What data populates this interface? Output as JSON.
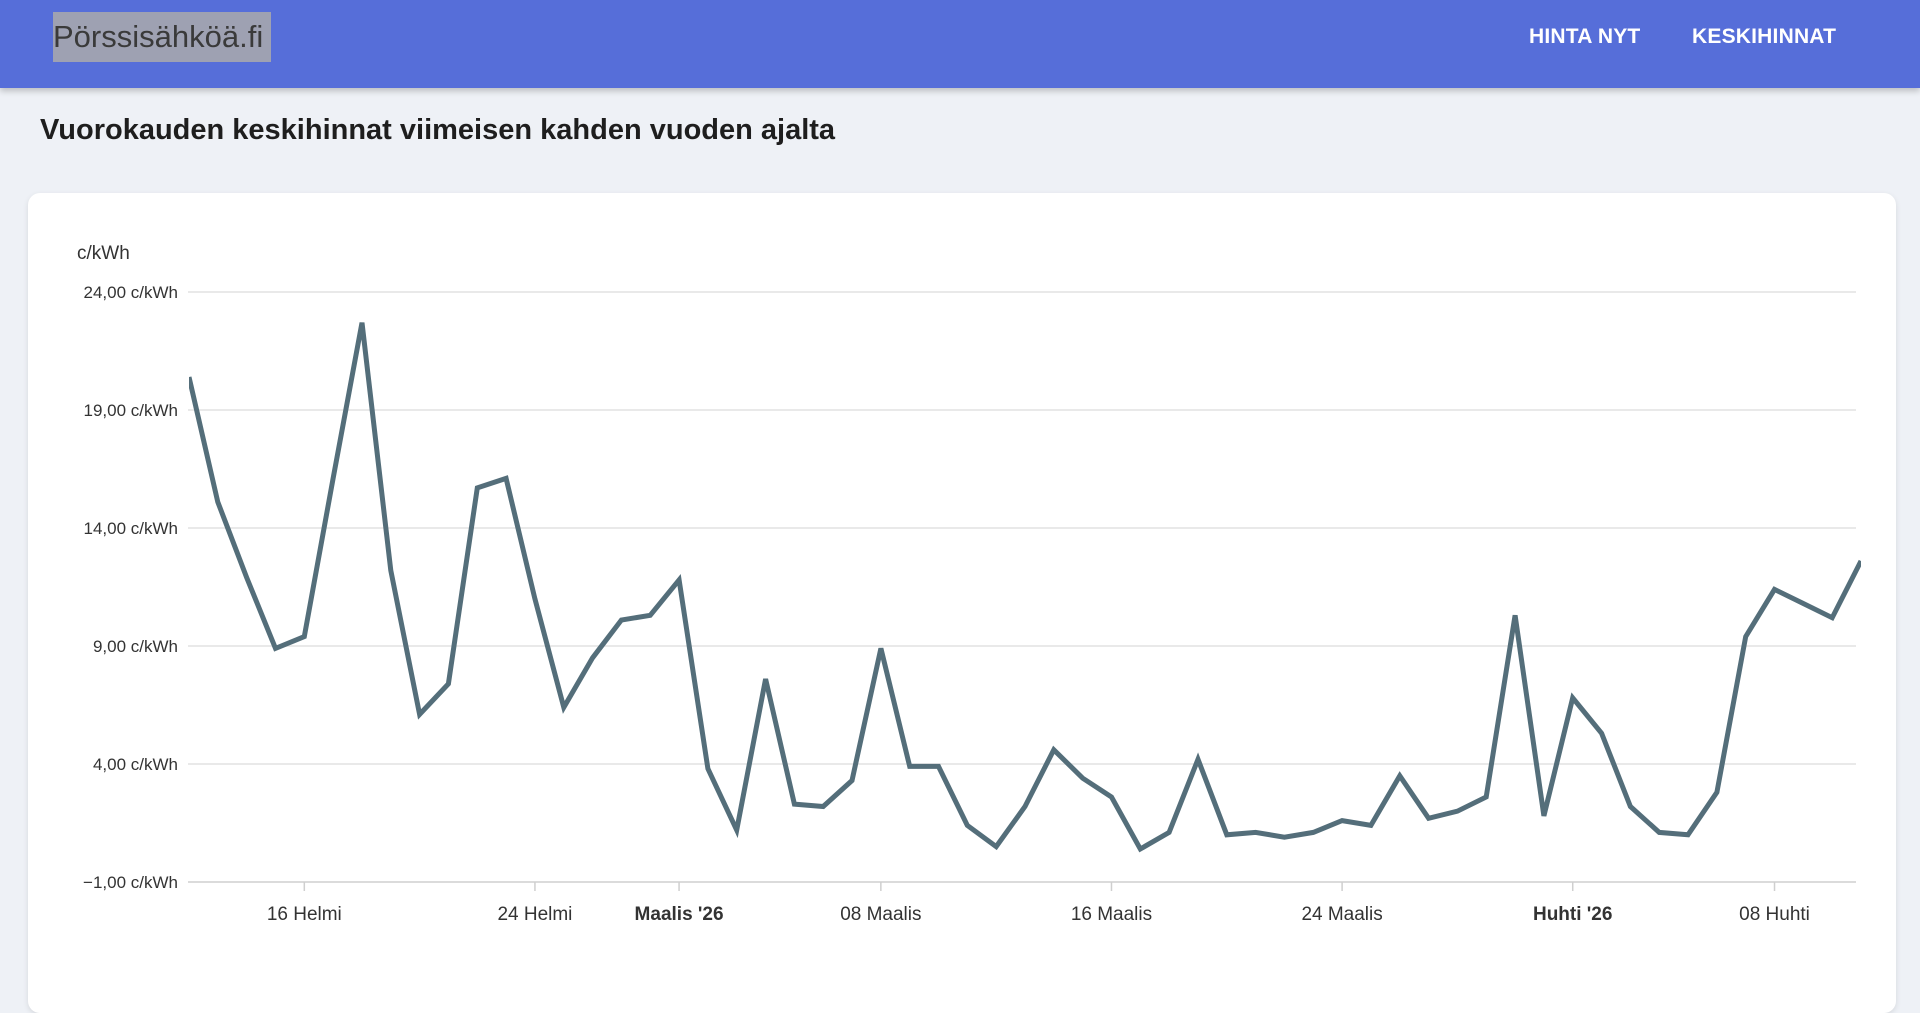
{
  "header": {
    "brand": "Pörssisähköä.fi",
    "nav": [
      {
        "label": "HINTA NYT"
      },
      {
        "label": "KESKIHINNAT"
      }
    ]
  },
  "page": {
    "title": "Vuorokauden keskihinnat viimeisen kahden vuoden ajalta"
  },
  "colors": {
    "header": "#566ed9",
    "line": "#546e7a",
    "background": "#eef1f6"
  },
  "chart_data": {
    "type": "line",
    "ylabel": "c/kWh",
    "ylim": [
      -1,
      24
    ],
    "yticks": [
      {
        "value": 24,
        "label": "24,00 c/kWh"
      },
      {
        "value": 19,
        "label": "19,00 c/kWh"
      },
      {
        "value": 14,
        "label": "14,00 c/kWh"
      },
      {
        "value": 9,
        "label": "9,00 c/kWh"
      },
      {
        "value": 4,
        "label": "4,00 c/kWh"
      },
      {
        "value": -1,
        "label": "−1,00 c/kWh"
      }
    ],
    "xlim": [
      "2026-02-12",
      "2026-04-11"
    ],
    "xticks": [
      {
        "date": "2026-02-16",
        "label": "16 Helmi",
        "bold": false
      },
      {
        "date": "2026-02-24",
        "label": "24 Helmi",
        "bold": false
      },
      {
        "date": "2026-03-01",
        "label": "Maalis '26",
        "bold": true
      },
      {
        "date": "2026-03-08",
        "label": "08 Maalis",
        "bold": false
      },
      {
        "date": "2026-03-16",
        "label": "16 Maalis",
        "bold": false
      },
      {
        "date": "2026-03-24",
        "label": "24 Maalis",
        "bold": false
      },
      {
        "date": "2026-04-01",
        "label": "Huhti '26",
        "bold": true
      },
      {
        "date": "2026-04-08",
        "label": "08 Huhti",
        "bold": false
      }
    ],
    "grid": true,
    "series": [
      {
        "x": [
          "2026-02-12",
          "2026-02-13",
          "2026-02-14",
          "2026-02-15",
          "2026-02-16",
          "2026-02-17",
          "2026-02-18",
          "2026-02-19",
          "2026-02-20",
          "2026-02-21",
          "2026-02-22",
          "2026-02-23",
          "2026-02-24",
          "2026-02-25",
          "2026-02-26",
          "2026-02-27",
          "2026-02-28",
          "2026-03-01",
          "2026-03-02",
          "2026-03-03",
          "2026-03-04",
          "2026-03-05",
          "2026-03-06",
          "2026-03-07",
          "2026-03-08",
          "2026-03-09",
          "2026-03-10",
          "2026-03-11",
          "2026-03-12",
          "2026-03-13",
          "2026-03-14",
          "2026-03-15",
          "2026-03-16",
          "2026-03-17",
          "2026-03-18",
          "2026-03-19",
          "2026-03-20",
          "2026-03-21",
          "2026-03-22",
          "2026-03-23",
          "2026-03-24",
          "2026-03-25",
          "2026-03-26",
          "2026-03-27",
          "2026-03-28",
          "2026-03-29",
          "2026-03-30",
          "2026-03-31",
          "2026-04-01",
          "2026-04-02",
          "2026-04-03",
          "2026-04-04",
          "2026-04-05",
          "2026-04-06",
          "2026-04-07",
          "2026-04-08",
          "2026-04-09",
          "2026-04-10",
          "2026-04-11"
        ],
        "values": [
          20.4,
          15.1,
          11.9,
          8.9,
          9.4,
          16.1,
          22.7,
          12.2,
          6.1,
          7.4,
          15.7,
          16.1,
          11.0,
          6.4,
          8.5,
          10.1,
          10.3,
          11.8,
          3.8,
          1.2,
          7.6,
          2.3,
          2.2,
          3.3,
          8.9,
          3.9,
          3.9,
          1.4,
          0.5,
          2.2,
          4.6,
          3.4,
          2.6,
          0.4,
          1.1,
          4.2,
          1.0,
          1.1,
          0.9,
          1.1,
          1.6,
          1.4,
          3.5,
          1.7,
          2.0,
          2.6,
          10.3,
          1.8,
          6.8,
          5.3,
          2.2,
          1.1,
          1.0,
          2.8,
          9.4,
          11.4,
          10.8,
          10.2,
          12.6
        ]
      }
    ]
  }
}
